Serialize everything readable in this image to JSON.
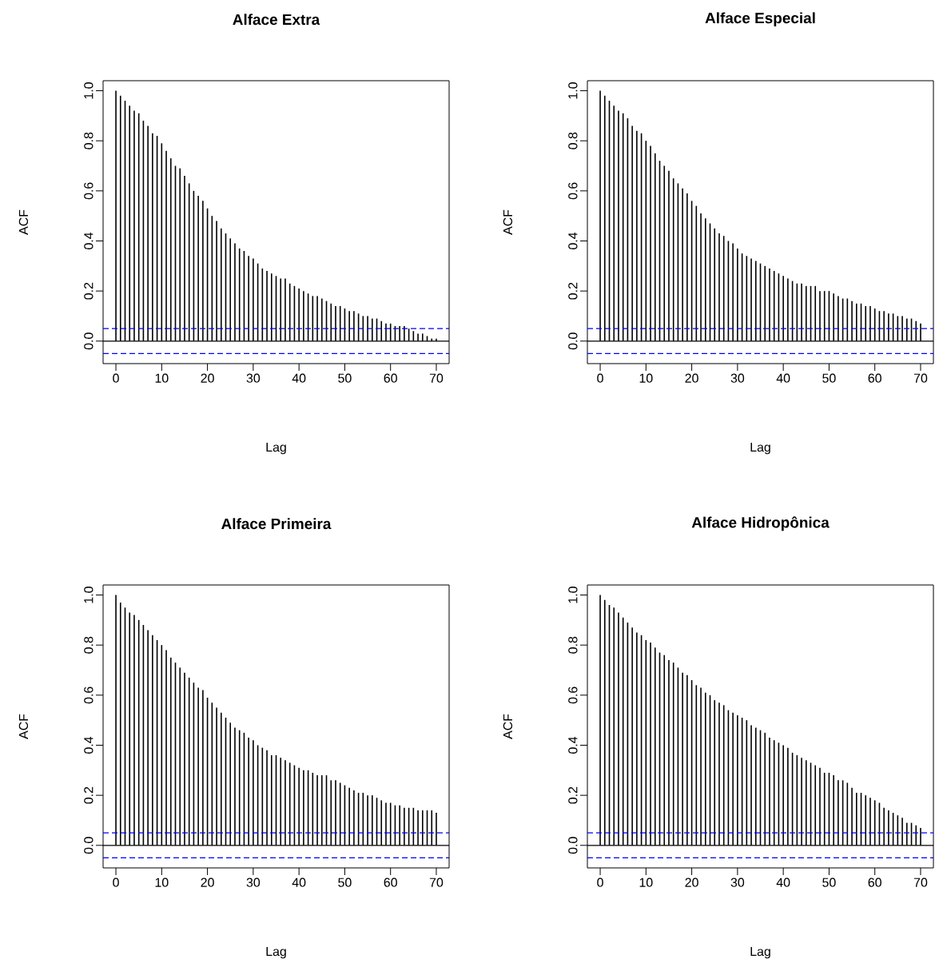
{
  "chart_data": [
    {
      "type": "bar",
      "title": "Alface Extra",
      "xlabel": "Lag",
      "ylabel": "ACF",
      "color": "#000000",
      "x": [
        0,
        1,
        2,
        3,
        4,
        5,
        6,
        7,
        8,
        9,
        10,
        11,
        12,
        13,
        14,
        15,
        16,
        17,
        18,
        19,
        20,
        21,
        22,
        23,
        24,
        25,
        26,
        27,
        28,
        29,
        30,
        31,
        32,
        33,
        34,
        35,
        36,
        37,
        38,
        39,
        40,
        41,
        42,
        43,
        44,
        45,
        46,
        47,
        48,
        49,
        50,
        51,
        52,
        53,
        54,
        55,
        56,
        57,
        58,
        59,
        60,
        61,
        62,
        63,
        64,
        65,
        66,
        67,
        68,
        69,
        70
      ],
      "values": [
        1.0,
        0.98,
        0.96,
        0.94,
        0.92,
        0.91,
        0.88,
        0.86,
        0.83,
        0.82,
        0.79,
        0.76,
        0.73,
        0.7,
        0.69,
        0.66,
        0.63,
        0.6,
        0.58,
        0.56,
        0.53,
        0.5,
        0.48,
        0.45,
        0.43,
        0.41,
        0.39,
        0.37,
        0.36,
        0.34,
        0.33,
        0.31,
        0.29,
        0.28,
        0.27,
        0.26,
        0.25,
        0.25,
        0.23,
        0.22,
        0.21,
        0.2,
        0.19,
        0.18,
        0.18,
        0.17,
        0.16,
        0.15,
        0.14,
        0.14,
        0.13,
        0.12,
        0.12,
        0.11,
        0.1,
        0.1,
        0.09,
        0.09,
        0.08,
        0.07,
        0.07,
        0.06,
        0.06,
        0.06,
        0.05,
        0.04,
        0.03,
        0.03,
        0.02,
        0.01,
        0.01
      ],
      "xlim": [
        -2.8,
        72.8
      ],
      "ylim": [
        -0.09,
        1.04
      ],
      "xticks": [
        0,
        10,
        20,
        30,
        40,
        50,
        60,
        70
      ],
      "yticks": [
        {
          "value": 0,
          "label": "0.0"
        },
        {
          "value": 0.2,
          "label": "0.2"
        },
        {
          "value": 0.4,
          "label": "0.4"
        },
        {
          "value": 0.6,
          "label": "0.6"
        },
        {
          "value": 0.8,
          "label": "0.8"
        },
        {
          "value": 1,
          "label": "1.0"
        }
      ],
      "ref_lines": [
        {
          "axis": "y",
          "value": 0.05,
          "color": "#0000ff",
          "line_style": "dashed"
        },
        {
          "axis": "y",
          "value": -0.05,
          "color": "#0000ff",
          "line_style": "dashed"
        }
      ]
    },
    {
      "type": "bar",
      "title": "Alface Especial",
      "xlabel": "Lag",
      "ylabel": "ACF",
      "color": "#000000",
      "x": [
        0,
        1,
        2,
        3,
        4,
        5,
        6,
        7,
        8,
        9,
        10,
        11,
        12,
        13,
        14,
        15,
        16,
        17,
        18,
        19,
        20,
        21,
        22,
        23,
        24,
        25,
        26,
        27,
        28,
        29,
        30,
        31,
        32,
        33,
        34,
        35,
        36,
        37,
        38,
        39,
        40,
        41,
        42,
        43,
        44,
        45,
        46,
        47,
        48,
        49,
        50,
        51,
        52,
        53,
        54,
        55,
        56,
        57,
        58,
        59,
        60,
        61,
        62,
        63,
        64,
        65,
        66,
        67,
        68,
        69,
        70
      ],
      "values": [
        1.0,
        0.98,
        0.96,
        0.94,
        0.92,
        0.91,
        0.89,
        0.86,
        0.84,
        0.83,
        0.8,
        0.78,
        0.75,
        0.72,
        0.7,
        0.68,
        0.65,
        0.63,
        0.61,
        0.59,
        0.56,
        0.54,
        0.51,
        0.49,
        0.47,
        0.45,
        0.43,
        0.42,
        0.4,
        0.39,
        0.37,
        0.35,
        0.34,
        0.33,
        0.32,
        0.31,
        0.3,
        0.29,
        0.28,
        0.27,
        0.26,
        0.25,
        0.24,
        0.23,
        0.23,
        0.22,
        0.22,
        0.22,
        0.2,
        0.2,
        0.2,
        0.19,
        0.18,
        0.17,
        0.17,
        0.16,
        0.15,
        0.15,
        0.14,
        0.14,
        0.13,
        0.12,
        0.12,
        0.11,
        0.11,
        0.1,
        0.1,
        0.09,
        0.09,
        0.08,
        0.07
      ],
      "xlim": [
        -2.8,
        72.8
      ],
      "ylim": [
        -0.09,
        1.04
      ],
      "xticks": [
        0,
        10,
        20,
        30,
        40,
        50,
        60,
        70
      ],
      "yticks": [
        {
          "value": 0,
          "label": "0.0"
        },
        {
          "value": 0.2,
          "label": "0.2"
        },
        {
          "value": 0.4,
          "label": "0.4"
        },
        {
          "value": 0.6,
          "label": "0.6"
        },
        {
          "value": 0.8,
          "label": "0.8"
        },
        {
          "value": 1,
          "label": "1.0"
        }
      ],
      "ref_lines": [
        {
          "axis": "y",
          "value": 0.05,
          "color": "#0000ff",
          "line_style": "dashed"
        },
        {
          "axis": "y",
          "value": -0.05,
          "color": "#0000ff",
          "line_style": "dashed"
        }
      ]
    },
    {
      "type": "bar",
      "title": "Alface Primeira",
      "xlabel": "Lag",
      "ylabel": "ACF",
      "color": "#000000",
      "x": [
        0,
        1,
        2,
        3,
        4,
        5,
        6,
        7,
        8,
        9,
        10,
        11,
        12,
        13,
        14,
        15,
        16,
        17,
        18,
        19,
        20,
        21,
        22,
        23,
        24,
        25,
        26,
        27,
        28,
        29,
        30,
        31,
        32,
        33,
        34,
        35,
        36,
        37,
        38,
        39,
        40,
        41,
        42,
        43,
        44,
        45,
        46,
        47,
        48,
        49,
        50,
        51,
        52,
        53,
        54,
        55,
        56,
        57,
        58,
        59,
        60,
        61,
        62,
        63,
        64,
        65,
        66,
        67,
        68,
        69,
        70
      ],
      "values": [
        1.0,
        0.97,
        0.95,
        0.93,
        0.92,
        0.9,
        0.88,
        0.86,
        0.84,
        0.82,
        0.8,
        0.78,
        0.75,
        0.73,
        0.71,
        0.69,
        0.67,
        0.65,
        0.63,
        0.62,
        0.59,
        0.57,
        0.55,
        0.53,
        0.51,
        0.49,
        0.47,
        0.46,
        0.45,
        0.43,
        0.42,
        0.4,
        0.39,
        0.38,
        0.36,
        0.36,
        0.35,
        0.34,
        0.33,
        0.32,
        0.31,
        0.3,
        0.3,
        0.29,
        0.28,
        0.28,
        0.28,
        0.26,
        0.26,
        0.25,
        0.24,
        0.23,
        0.22,
        0.21,
        0.21,
        0.2,
        0.2,
        0.19,
        0.18,
        0.17,
        0.17,
        0.16,
        0.16,
        0.15,
        0.15,
        0.15,
        0.14,
        0.14,
        0.14,
        0.14,
        0.13
      ],
      "xlim": [
        -2.8,
        72.8
      ],
      "ylim": [
        -0.09,
        1.04
      ],
      "xticks": [
        0,
        10,
        20,
        30,
        40,
        50,
        60,
        70
      ],
      "yticks": [
        {
          "value": 0,
          "label": "0.0"
        },
        {
          "value": 0.2,
          "label": "0.2"
        },
        {
          "value": 0.4,
          "label": "0.4"
        },
        {
          "value": 0.6,
          "label": "0.6"
        },
        {
          "value": 0.8,
          "label": "0.8"
        },
        {
          "value": 1,
          "label": "1.0"
        }
      ],
      "ref_lines": [
        {
          "axis": "y",
          "value": 0.05,
          "color": "#0000ff",
          "line_style": "dashed"
        },
        {
          "axis": "y",
          "value": -0.05,
          "color": "#0000ff",
          "line_style": "dashed"
        }
      ]
    },
    {
      "type": "bar",
      "title": "Alface Hidropônica",
      "xlabel": "Lag",
      "ylabel": "ACF",
      "color": "#000000",
      "x": [
        0,
        1,
        2,
        3,
        4,
        5,
        6,
        7,
        8,
        9,
        10,
        11,
        12,
        13,
        14,
        15,
        16,
        17,
        18,
        19,
        20,
        21,
        22,
        23,
        24,
        25,
        26,
        27,
        28,
        29,
        30,
        31,
        32,
        33,
        34,
        35,
        36,
        37,
        38,
        39,
        40,
        41,
        42,
        43,
        44,
        45,
        46,
        47,
        48,
        49,
        50,
        51,
        52,
        53,
        54,
        55,
        56,
        57,
        58,
        59,
        60,
        61,
        62,
        63,
        64,
        65,
        66,
        67,
        68,
        69,
        70
      ],
      "values": [
        1.0,
        0.98,
        0.96,
        0.95,
        0.93,
        0.91,
        0.89,
        0.87,
        0.85,
        0.84,
        0.82,
        0.81,
        0.79,
        0.77,
        0.76,
        0.74,
        0.73,
        0.71,
        0.69,
        0.68,
        0.66,
        0.64,
        0.63,
        0.61,
        0.6,
        0.58,
        0.57,
        0.56,
        0.54,
        0.53,
        0.52,
        0.51,
        0.5,
        0.48,
        0.47,
        0.46,
        0.45,
        0.43,
        0.42,
        0.41,
        0.4,
        0.39,
        0.37,
        0.36,
        0.35,
        0.34,
        0.33,
        0.32,
        0.31,
        0.29,
        0.29,
        0.28,
        0.26,
        0.26,
        0.25,
        0.23,
        0.21,
        0.21,
        0.2,
        0.19,
        0.18,
        0.17,
        0.15,
        0.14,
        0.13,
        0.12,
        0.11,
        0.09,
        0.09,
        0.08,
        0.07
      ],
      "xlim": [
        -2.8,
        72.8
      ],
      "ylim": [
        -0.09,
        1.04
      ],
      "xticks": [
        0,
        10,
        20,
        30,
        40,
        50,
        60,
        70
      ],
      "yticks": [
        {
          "value": 0,
          "label": "0.0"
        },
        {
          "value": 0.2,
          "label": "0.2"
        },
        {
          "value": 0.4,
          "label": "0.4"
        },
        {
          "value": 0.6,
          "label": "0.6"
        },
        {
          "value": 0.8,
          "label": "0.8"
        },
        {
          "value": 1,
          "label": "1.0"
        }
      ],
      "ref_lines": [
        {
          "axis": "y",
          "value": 0.05,
          "color": "#0000ff",
          "line_style": "dashed"
        },
        {
          "axis": "y",
          "value": -0.05,
          "color": "#0000ff",
          "line_style": "dashed"
        }
      ]
    }
  ]
}
